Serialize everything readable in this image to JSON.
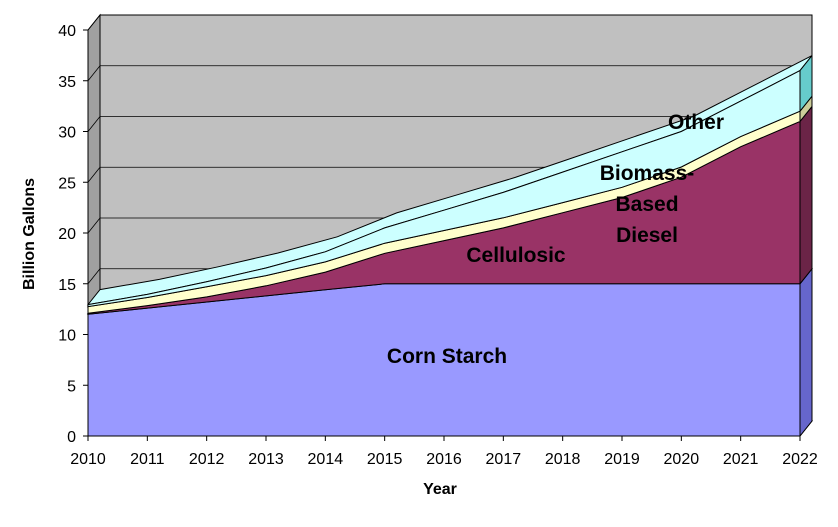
{
  "chart_data": {
    "type": "area",
    "stacked": true,
    "three_d": true,
    "title": "",
    "xlabel": "Year",
    "ylabel": "Billion Gallons",
    "ylim": [
      0,
      40
    ],
    "yticks": [
      0,
      5,
      10,
      15,
      20,
      25,
      30,
      35,
      40
    ],
    "x": [
      "2010",
      "2011",
      "2012",
      "2013",
      "2014",
      "2015",
      "2016",
      "2017",
      "2018",
      "2019",
      "2020",
      "2021",
      "2022"
    ],
    "grid": true,
    "legend": "none (inline labels)",
    "series": [
      {
        "name": "Corn Starch",
        "color": "#9999ff",
        "side_color": "#6666cc",
        "values": [
          12,
          12.6,
          13.2,
          13.8,
          14.4,
          15,
          15,
          15,
          15,
          15,
          15,
          15,
          15
        ]
      },
      {
        "name": "Cellulosic",
        "color": "#993366",
        "side_color": "#6b2447",
        "values": [
          0.1,
          0.25,
          0.5,
          1.0,
          1.75,
          3.0,
          4.25,
          5.5,
          7.0,
          8.5,
          10.5,
          13.5,
          16.0
        ]
      },
      {
        "name": "Biomass-Based Diesel",
        "color": "#ffffcc",
        "side_color": "#cccc99",
        "values": [
          0.65,
          0.8,
          1.0,
          1.0,
          1.0,
          1.0,
          1.0,
          1.0,
          1.0,
          1.0,
          1.0,
          1.0,
          1.0
        ]
      },
      {
        "name": "Other",
        "color": "#ccffff",
        "side_color": "#66cccc",
        "values": [
          0.2,
          0.3,
          0.5,
          0.75,
          1.0,
          1.5,
          2.0,
          2.5,
          3.0,
          3.5,
          3.5,
          3.5,
          4.0
        ]
      }
    ],
    "annotations": [
      {
        "series": "Corn Starch",
        "lines": [
          "Corn Starch"
        ]
      },
      {
        "series": "Cellulosic",
        "lines": [
          "Cellulosic"
        ]
      },
      {
        "series": "Biomass-Based Diesel",
        "lines": [
          "Biomass-",
          "Based",
          "Diesel"
        ]
      },
      {
        "series": "Other",
        "lines": [
          "Other"
        ]
      }
    ],
    "wall_color": "#c0c0c0"
  }
}
